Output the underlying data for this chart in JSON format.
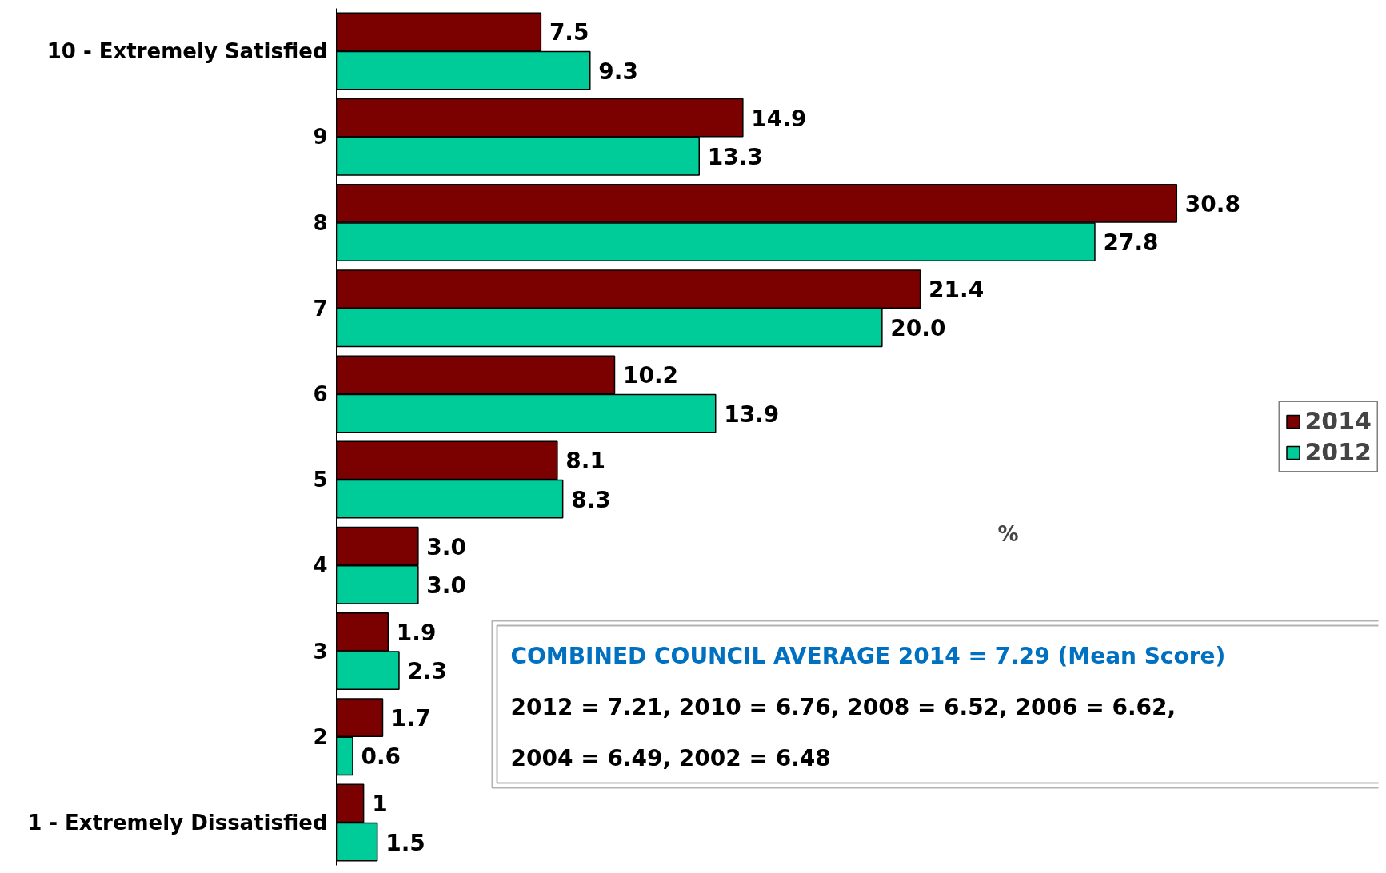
{
  "chart_data": {
    "type": "bar",
    "orientation": "horizontal",
    "categories": [
      "10 - Extremely Satisfied",
      "9",
      "8",
      "7",
      "6",
      "5",
      "4",
      "3",
      "2",
      "1 - Extremely Dissatisfied"
    ],
    "series": [
      {
        "name": "2014",
        "color": "#7b0000",
        "values": [
          7.5,
          14.9,
          30.8,
          21.4,
          10.2,
          8.1,
          3.0,
          1.9,
          1.7,
          1
        ],
        "value_labels": [
          "7.5",
          "14.9",
          "30.8",
          "21.4",
          "10.2",
          "8.1",
          "3.0",
          "1.9",
          "1.7",
          "1"
        ]
      },
      {
        "name": "2012",
        "color": "#00cc99",
        "values": [
          9.3,
          13.3,
          27.8,
          20.0,
          13.9,
          8.3,
          3.0,
          2.3,
          0.6,
          1.5
        ],
        "value_labels": [
          "9.3",
          "13.3",
          "27.8",
          "20.0",
          "13.9",
          "8.3",
          "3.0",
          "2.3",
          "0.6",
          "1.5"
        ]
      }
    ],
    "legend": "right",
    "grid": false,
    "annotations": [
      "%",
      "COMBINED COUNCIL AVERAGE 2014 = 7.29 (Mean Score)",
      "2012 = 7.21, 2010 = 6.76, 2008 = 6.52, 2006 = 6.62,",
      "2004 = 6.49, 2002 = 6.48"
    ]
  }
}
